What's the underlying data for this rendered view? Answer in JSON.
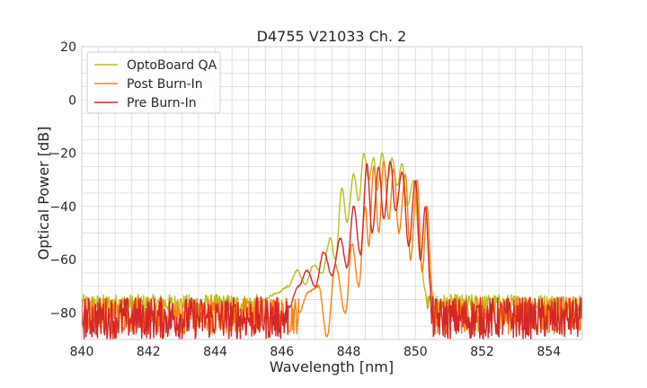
{
  "chart_data": {
    "type": "line",
    "title": "D4755 V21033 Ch. 2",
    "xlabel": "Wavelength [nm]",
    "ylabel": "Optical Power [dB]",
    "xlim": [
      840,
      855
    ],
    "ylim": [
      -90,
      20
    ],
    "xticks": [
      840,
      842,
      844,
      846,
      848,
      850,
      852,
      854
    ],
    "yticks": [
      20,
      0,
      -20,
      -40,
      -60,
      -80
    ],
    "xtick_labels": [
      "840",
      "842",
      "844",
      "846",
      "848",
      "850",
      "852",
      "854"
    ],
    "ytick_labels": [
      "20",
      "0",
      "−20",
      "−40",
      "−60",
      "−80"
    ],
    "grid": true,
    "legend_position": "top-left",
    "series": [
      {
        "name": "OptoBoard QA",
        "color": "#bcbd22",
        "noise_range": [
          -80,
          -73
        ],
        "points": [
          [
            845.3,
            -76
          ],
          [
            845.8,
            -73
          ],
          [
            846.2,
            -70
          ],
          [
            846.45,
            -64
          ],
          [
            846.7,
            -69
          ],
          [
            846.95,
            -62
          ],
          [
            847.2,
            -65
          ],
          [
            847.45,
            -52
          ],
          [
            847.6,
            -60
          ],
          [
            847.8,
            -33
          ],
          [
            847.95,
            -46
          ],
          [
            848.15,
            -28
          ],
          [
            848.3,
            -38
          ],
          [
            848.45,
            -20
          ],
          [
            848.6,
            -30
          ],
          [
            848.75,
            -22
          ],
          [
            848.85,
            -34
          ],
          [
            849.0,
            -20
          ],
          [
            849.15,
            -30
          ],
          [
            849.3,
            -22
          ],
          [
            849.45,
            -32
          ],
          [
            849.6,
            -24
          ],
          [
            849.75,
            -40
          ],
          [
            849.95,
            -30
          ],
          [
            850.15,
            -60
          ],
          [
            850.3,
            -72
          ]
        ]
      },
      {
        "name": "Post Burn-In",
        "color": "#ff7f0e",
        "noise_range": [
          -88,
          -74
        ],
        "points": [
          [
            846.5,
            -80
          ],
          [
            846.8,
            -72
          ],
          [
            847.1,
            -70
          ],
          [
            847.35,
            -89
          ],
          [
            847.6,
            -62
          ],
          [
            847.9,
            -80
          ],
          [
            848.1,
            -54
          ],
          [
            848.3,
            -70
          ],
          [
            848.5,
            -40
          ],
          [
            848.6,
            -55
          ],
          [
            848.75,
            -25
          ],
          [
            848.9,
            -50
          ],
          [
            849.05,
            -23
          ],
          [
            849.2,
            -45
          ],
          [
            849.35,
            -26
          ],
          [
            849.5,
            -50
          ],
          [
            849.7,
            -28
          ],
          [
            849.85,
            -60
          ],
          [
            850.05,
            -30
          ],
          [
            850.2,
            -65
          ],
          [
            850.35,
            -40
          ],
          [
            850.5,
            -72
          ]
        ]
      },
      {
        "name": "Pre Burn-In",
        "color": "#d62728",
        "noise_range": [
          -90,
          -74
        ],
        "points": [
          [
            846.2,
            -78
          ],
          [
            846.5,
            -70
          ],
          [
            846.75,
            -64
          ],
          [
            847.0,
            -70
          ],
          [
            847.25,
            -57
          ],
          [
            847.5,
            -66
          ],
          [
            847.75,
            -52
          ],
          [
            847.95,
            -63
          ],
          [
            848.15,
            -40
          ],
          [
            848.35,
            -58
          ],
          [
            848.55,
            -24
          ],
          [
            848.7,
            -50
          ],
          [
            848.9,
            -25
          ],
          [
            849.05,
            -45
          ],
          [
            849.25,
            -23
          ],
          [
            849.4,
            -42
          ],
          [
            849.6,
            -27
          ],
          [
            849.8,
            -55
          ],
          [
            850.0,
            -30
          ],
          [
            850.15,
            -60
          ],
          [
            850.3,
            -40
          ],
          [
            850.45,
            -70
          ]
        ]
      }
    ]
  }
}
